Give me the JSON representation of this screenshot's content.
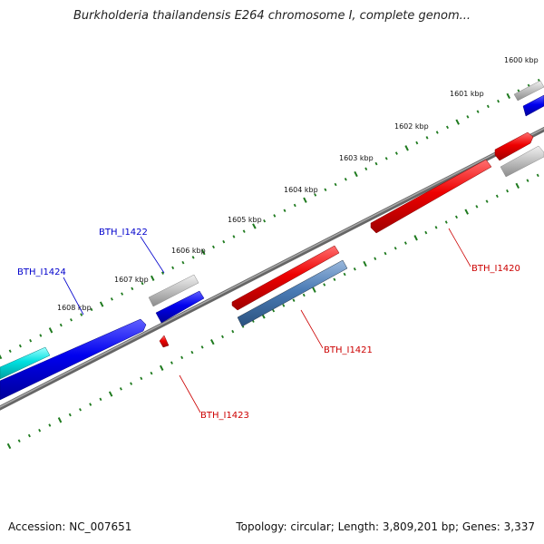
{
  "title": "Burkholderia thailandensis E264 chromosome I, complete genom...",
  "footer": {
    "accession": "Accession: NC_007651",
    "summary": "Topology: circular; Length: 3,809,201 bp; Genes: 3,337"
  },
  "colors": {
    "background": "#ffffff",
    "backbone": "#808080",
    "tick": "#1e7a1e",
    "label_forward": "#0000cc",
    "label_reverse": "#cc0000",
    "gene_red": "#ee0000",
    "gene_blue": "#0000ee",
    "gene_steel": "#4a7bb5",
    "gene_cyan": "#00e0e0",
    "gene_gray": "#b8b8b8"
  },
  "kbp_labels": [
    "1600 kbp",
    "1601 kbp",
    "1602 kbp",
    "1603 kbp",
    "1604 kbp",
    "1605 kbp",
    "1606 kbp",
    "1607 kbp",
    "1608 kbp"
  ],
  "gene_labels": {
    "forward": [
      "BTH_I1422",
      "BTH_I1424"
    ],
    "reverse": [
      "BTH_I1420",
      "BTH_I1421",
      "BTH_I1423"
    ]
  }
}
